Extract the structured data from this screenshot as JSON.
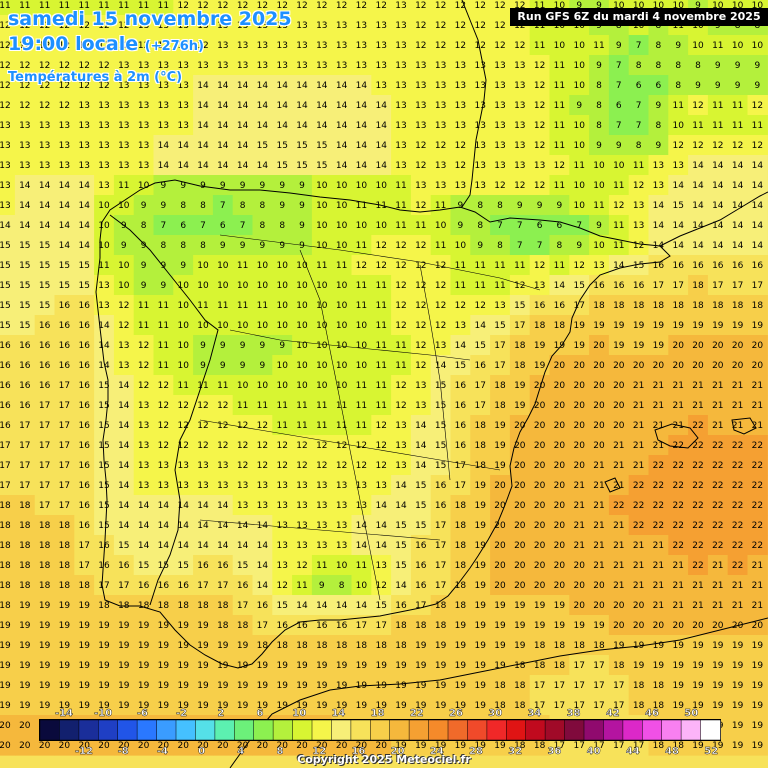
{
  "header": {
    "date": "samedi 15 novembre 2025",
    "time": "19:00 locale",
    "offset": "(+276h)",
    "parameter": "Températures à 2m (°C)",
    "run": "Run GFS 6Z du mardi 4 novembre 2025"
  },
  "copyright": "Copyright 2025 Meteociel.fr",
  "legend": {
    "upper_labels": [
      "-14",
      "-10",
      "-6",
      "-2",
      "2",
      "6",
      "10",
      "14",
      "18",
      "22",
      "26",
      "30",
      "34",
      "38",
      "42",
      "46",
      "50"
    ],
    "lower_labels": [
      "-12",
      "-8",
      "-4",
      "0",
      "4",
      "8",
      "12",
      "16",
      "20",
      "24",
      "28",
      "32",
      "36",
      "40",
      "44",
      "48",
      "52"
    ],
    "colors": [
      "#0a0a3c",
      "#12206e",
      "#1a2e9a",
      "#1f3fc4",
      "#2155e8",
      "#2a78ff",
      "#3a9cff",
      "#45c0ff",
      "#55e0e8",
      "#5cf0b0",
      "#6cf07a",
      "#8cf050",
      "#b4f03c",
      "#d8f532",
      "#f5f54a",
      "#f7ef78",
      "#f7e25a",
      "#f7cf4a",
      "#f5b83c",
      "#f5a032",
      "#f58a2a",
      "#f06a2a",
      "#f04a2a",
      "#f02828",
      "#e01414",
      "#c00a1e",
      "#a00a28",
      "#800a3c",
      "#900a6e",
      "#b414a0",
      "#dc28c8",
      "#f050e6",
      "#f880f0",
      "#fcb4f8",
      "#ffffff"
    ]
  },
  "map_grid": {
    "rows": [
      "11 11 11 11 11 11 11 11 11 12 12 12 12 12 12 12 12 12 12 12 13 12 12 12 12 12 12 11 10 9 9 10 10 10 10 9 10 10 10",
      "12 12 12 12 12 12 12 13 13 13 13 13 13 13 13 13 13 13 13 13 13 12 12 12 12 12 12 11 10 10 9 8 10 8 11 10 9 8 8",
      "12 12 12 12 12 12 12 12 12 12 12 13 13 13 13 13 13 13 13 13 13 12 12 12 12 12 12 11 10 10 11 9 7 8 9 10 11 10 10",
      "12 12 12 12 12 12 13 13 13 13 13 13 13 13 13 13 13 13 13 13 13 13 13 13 13 13 13 12 11 10 9 7 8 8 8 8 9 9 9",
      "12 12 12 12 12 12 13 13 13 13 14 14 14 14 14 14 14 14 14 13 13 13 13 13 13 13 13 12 11 10 8 7 6 6 8 9 9 9 9",
      "12 12 12 12 13 13 13 13 13 13 14 14 14 14 14 14 14 14 14 14 13 13 13 13 13 13 13 12 11 9 8 6 7 9 11 12 11 11 12",
      "13 13 13 13 13 13 13 13 13 13 14 14 14 14 14 14 14 14 14 14 13 13 13 13 13 13 13 12 11 10 8 7 7 8 10 11 11 11 11",
      "13 13 13 13 13 13 13 13 14 14 14 14 14 15 15 15 15 14 14 14 13 12 12 12 13 13 13 12 11 10 9 9 8 9 12 12 12 12 12",
      "13 13 13 13 13 13 13 13 14 14 14 14 14 14 15 15 15 14 14 14 13 12 13 12 13 13 13 13 12 11 10 10 11 13 13 14 14 14 14",
      "13 14 14 14 14 13 11 10 9 9 9 9 9 9 9 9 10 10 10 10 11 13 13 13 13 12 12 12 11 10 10 11 12 13 14 14 14 14 14",
      "13 14 14 14 14 10 10 9 9 8 8 7 8 8 9 9 10 10 11 11 11 12 11 9 8 8 9 9 9 10 11 12 13 14 15 14 14 14 14",
      "14 14 14 14 14 10 9 8 7 6 7 6 7 8 8 9 10 10 10 10 11 11 10 9 8 7 7 6 6 7 9 11 13 14 14 14 14 14 14",
      "15 15 15 14 14 10 9 9 8 8 8 9 9 9 9 9 10 10 11 12 12 12 11 10 9 8 7 7 8 9 10 11 12 14 14 14 14 14 14",
      "15 15 15 15 15 11 10 9 9 9 10 10 11 10 10 10 11 11 12 12 12 12 12 11 11 11 11 12 11 12 13 14 15 16 16 16 16 16 16",
      "15 15 15 15 15 13 10 9 9 10 10 10 10 10 10 10 10 10 11 11 12 12 12 11 11 11 12 13 14 15 16 16 16 17 17 18 17 17 17",
      "15 15 15 16 16 13 12 11 11 10 11 11 11 11 10 10 10 10 11 11 12 12 12 12 12 13 15 16 16 17 18 18 18 18 18 18 18 18 18",
      "15 15 16 16 16 14 12 11 11 10 10 10 10 10 10 10 10 10 10 11 12 12 12 13 14 15 17 18 18 19 19 19 19 19 19 19 19 19 19",
      "16 16 16 16 16 14 13 12 11 10 9 9 9 9 9 10 10 10 10 11 11 12 13 14 15 17 18 19 19 19 20 19 19 19 20 20 20 20 20",
      "16 16 16 16 16 14 13 12 11 10 9 9 9 9 10 10 10 10 10 11 11 12 14 15 16 17 18 19 20 20 20 20 20 20 20 20 20 20 20",
      "16 16 16 17 16 15 14 12 12 11 11 11 10 10 10 10 10 10 11 11 12 13 15 16 17 18 19 20 20 20 20 20 21 21 21 21 21 21 21",
      "16 16 17 17 16 15 14 13 12 12 12 12 11 11 11 11 11 11 11 11 12 13 15 16 17 18 19 20 20 20 20 20 21 21 21 21 21 21 21",
      "16 17 17 17 16 15 14 13 12 12 12 12 12 12 11 11 11 11 11 12 13 14 15 16 18 19 20 20 20 20 20 20 21 21 21 22 21 21 21",
      "17 17 17 17 16 15 14 13 12 12 12 12 12 12 12 12 12 12 12 12 13 14 15 16 18 19 20 20 20 20 20 21 21 21 22 22 22 22 22",
      "17 17 17 17 16 15 14 13 13 13 13 13 12 12 12 12 12 12 12 12 13 14 15 17 18 19 20 20 20 20 21 21 21 22 22 22 22 22 22",
      "17 17 17 17 16 15 14 13 13 13 13 13 13 13 13 13 13 13 13 13 14 15 16 17 19 20 20 20 20 21 21 21 22 22 22 22 22 22 22",
      "18 18 17 17 16 15 14 14 14 14 14 14 13 13 13 13 13 13 13 14 14 15 16 18 19 20 20 20 20 21 21 22 22 22 22 22 22 22 22",
      "18 18 18 18 16 15 14 14 14 14 14 14 14 14 13 13 13 13 14 14 15 15 17 18 19 20 20 20 20 21 21 21 22 22 22 22 22 22 22",
      "18 18 18 18 17 16 15 14 14 14 14 14 14 14 13 13 13 13 14 14 15 16 17 18 19 20 20 20 20 21 21 21 21 21 22 22 22 22 22",
      "18 18 18 18 17 16 16 15 15 15 16 16 15 14 13 12 11 10 11 13 15 16 17 18 19 20 20 20 20 20 21 21 21 21 21 22 21 22 21",
      "18 18 18 18 18 17 17 16 16 16 17 17 16 14 12 11 9 8 10 12 14 16 17 18 19 20 20 20 20 20 20 21 21 21 21 21 21 21 21",
      "18 19 19 19 19 18 18 18 18 18 18 18 17 16 15 14 14 14 14 15 16 17 18 18 19 19 19 19 19 20 20 20 20 21 21 21 21 21 21",
      "19 19 19 19 19 19 19 19 19 19 19 18 18 17 16 16 16 16 17 17 18 18 18 19 19 19 19 19 19 19 19 20 20 20 20 20 20 20 20",
      "19 19 19 19 19 19 19 19 19 19 19 19 19 18 18 18 18 18 18 18 18 19 19 19 19 19 19 18 18 18 18 19 19 19 19 19 19 19 19",
      "19 19 19 19 19 19 19 19 19 19 19 19 19 19 19 19 19 19 19 19 19 19 19 19 19 19 18 18 18 17 17 18 19 19 19 19 19 19 19",
      "19 19 19 19 19 19 19 19 19 19 19 19 19 19 19 19 19 19 19 19 19 19 19 19 19 18 18 17 17 17 17 17 18 18 19 19 19 19 19",
      "19 19 19 19 19 19 19 19 19 19 19 19 19 19 19 19 19 19 19 19 19 19 19 19 19 18 18 17 17 17 17 17 18 18 19 19 19 19 19",
      "20 20 20 20 20 20 20 20 20 20 20 20 20 20 20 20 20 19 19 19 19 19 19 19 19 18 18 18 17 17 17 17 17 18 19 19 19 19 19",
      "20 20 20 20 20 20 20 20 20 20 20 20 20 20 20 20 20 20 20 20 19 19 19 19 19 19 18 18 17 17 17 17 17 18 18 19 19 19 19"
    ]
  }
}
